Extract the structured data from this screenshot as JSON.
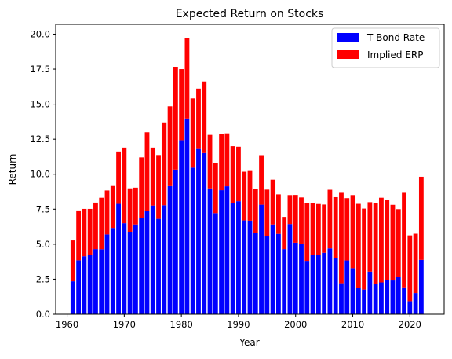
{
  "chart_data": {
    "type": "bar",
    "stacked": true,
    "title": "Expected Return on Stocks",
    "xlabel": "Year",
    "ylabel": "Return",
    "xlim": [
      1958,
      2026
    ],
    "ylim": [
      0,
      20.7
    ],
    "x_ticks": [
      1960,
      1970,
      1980,
      1990,
      2000,
      2010,
      2020
    ],
    "y_ticks": [
      0.0,
      2.5,
      5.0,
      7.5,
      10.0,
      12.5,
      15.0,
      17.5,
      20.0
    ],
    "y_tick_labels": [
      "0.0",
      "2.5",
      "5.0",
      "7.5",
      "10.0",
      "12.5",
      "15.0",
      "17.5",
      "20.0"
    ],
    "legend_position": "top-right",
    "grid": false,
    "x": [
      1961,
      1962,
      1963,
      1964,
      1965,
      1966,
      1967,
      1968,
      1969,
      1970,
      1971,
      1972,
      1973,
      1974,
      1975,
      1976,
      1977,
      1978,
      1979,
      1980,
      1981,
      1982,
      1983,
      1984,
      1985,
      1986,
      1987,
      1988,
      1989,
      1990,
      1991,
      1992,
      1993,
      1994,
      1995,
      1996,
      1997,
      1998,
      1999,
      2000,
      2001,
      2002,
      2003,
      2004,
      2005,
      2006,
      2007,
      2008,
      2009,
      2010,
      2011,
      2012,
      2013,
      2014,
      2015,
      2016,
      2017,
      2018,
      2019,
      2020,
      2021,
      2022
    ],
    "series": [
      {
        "name": "T Bond Rate",
        "color": "#0000ff",
        "values": [
          2.35,
          3.85,
          4.14,
          4.21,
          4.65,
          4.64,
          5.7,
          6.16,
          7.88,
          6.5,
          5.89,
          6.41,
          6.9,
          7.4,
          7.76,
          6.81,
          7.78,
          9.15,
          10.33,
          12.43,
          13.98,
          10.47,
          11.8,
          11.51,
          8.99,
          7.22,
          8.86,
          9.14,
          7.93,
          8.07,
          6.7,
          6.68,
          5.79,
          7.82,
          5.57,
          6.41,
          5.74,
          4.65,
          6.44,
          5.11,
          5.05,
          3.81,
          4.25,
          4.22,
          4.39,
          4.7,
          4.02,
          2.21,
          3.84,
          3.29,
          1.88,
          1.76,
          3.04,
          2.17,
          2.27,
          2.45,
          2.41,
          2.68,
          1.92,
          0.93,
          1.51,
          3.88
        ]
      },
      {
        "name": "Implied ERP",
        "color": "#ff0000",
        "values": [
          2.92,
          3.56,
          3.38,
          3.31,
          3.32,
          3.68,
          3.14,
          3.0,
          3.74,
          5.4,
          3.1,
          2.63,
          4.3,
          5.6,
          4.14,
          4.56,
          5.92,
          5.7,
          7.34,
          5.07,
          5.72,
          4.94,
          4.31,
          5.11,
          3.82,
          3.58,
          3.99,
          3.78,
          4.07,
          3.89,
          3.48,
          3.55,
          3.17,
          3.54,
          3.33,
          3.2,
          2.82,
          2.3,
          2.07,
          3.41,
          3.29,
          4.15,
          3.7,
          3.65,
          3.44,
          4.19,
          4.34,
          6.46,
          4.45,
          5.22,
          6.0,
          5.78,
          4.96,
          5.78,
          6.05,
          5.72,
          5.4,
          4.82,
          6.75,
          4.7,
          4.24,
          5.94
        ]
      }
    ]
  }
}
